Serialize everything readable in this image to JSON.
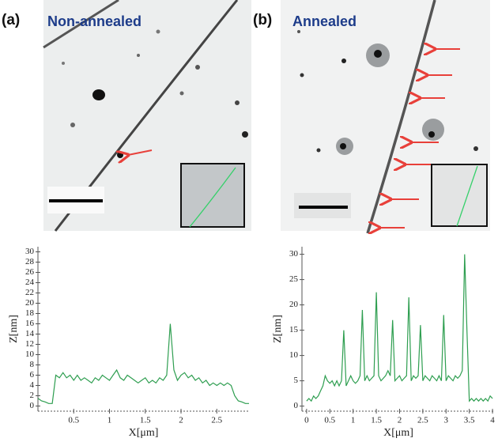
{
  "panels": [
    {
      "label": "(a)",
      "title": "Non-annealed"
    },
    {
      "label": "(b)",
      "title": "Annealed"
    }
  ],
  "chart_data": [
    {
      "type": "line",
      "xlabel": "X[μm]",
      "ylabel": "Z[nm]",
      "color": "#2e9e50",
      "xlim": [
        0,
        2.95
      ],
      "ylim": [
        -1,
        31
      ],
      "xticks": [
        0.5,
        1,
        1.5,
        2,
        2.5
      ],
      "yticks": [
        0,
        2,
        4,
        6,
        8,
        10,
        12,
        14,
        16,
        18,
        20,
        22,
        24,
        26,
        28,
        30
      ],
      "x": [
        0,
        0.05,
        0.1,
        0.15,
        0.2,
        0.25,
        0.3,
        0.35,
        0.4,
        0.45,
        0.5,
        0.55,
        0.6,
        0.65,
        0.7,
        0.75,
        0.8,
        0.85,
        0.9,
        0.95,
        1,
        1.05,
        1.1,
        1.15,
        1.2,
        1.25,
        1.3,
        1.35,
        1.4,
        1.45,
        1.5,
        1.55,
        1.6,
        1.65,
        1.7,
        1.75,
        1.8,
        1.85,
        1.9,
        1.95,
        2,
        2.05,
        2.1,
        2.15,
        2.2,
        2.25,
        2.3,
        2.35,
        2.4,
        2.45,
        2.5,
        2.55,
        2.6,
        2.65,
        2.7,
        2.75,
        2.8,
        2.85,
        2.9,
        2.95
      ],
      "values": [
        1.5,
        1,
        0.8,
        0.5,
        0.5,
        6,
        5.5,
        6.5,
        5.5,
        6,
        5,
        6,
        5,
        5.5,
        5,
        4.5,
        5.5,
        5,
        6,
        5.5,
        5,
        6,
        7,
        5.5,
        5,
        6,
        5.5,
        5,
        4.5,
        5,
        5.5,
        4.5,
        5,
        4.5,
        5.5,
        5,
        6,
        16,
        7,
        5,
        6,
        6.5,
        5.5,
        6,
        5,
        5.5,
        4.5,
        5,
        4,
        4.5,
        4,
        4.5,
        4,
        4.5,
        4,
        2,
        1,
        0.8,
        0.5,
        0.5
      ]
    },
    {
      "type": "line",
      "xlabel": "X[μm]",
      "ylabel": "Z[nm]",
      "color": "#2e9e50",
      "xlim": [
        -0.1,
        4.05
      ],
      "ylim": [
        -1,
        31.5
      ],
      "xticks": [
        0,
        0.5,
        1,
        1.5,
        2,
        2.5,
        3,
        3.5,
        4
      ],
      "yticks": [
        0,
        5,
        10,
        15,
        20,
        25,
        30
      ],
      "x": [
        0,
        0.05,
        0.1,
        0.15,
        0.2,
        0.25,
        0.3,
        0.35,
        0.4,
        0.45,
        0.5,
        0.55,
        0.6,
        0.65,
        0.7,
        0.75,
        0.8,
        0.85,
        0.9,
        0.95,
        1,
        1.05,
        1.1,
        1.15,
        1.2,
        1.25,
        1.3,
        1.35,
        1.4,
        1.45,
        1.5,
        1.55,
        1.6,
        1.65,
        1.7,
        1.75,
        1.8,
        1.85,
        1.9,
        1.95,
        2,
        2.05,
        2.1,
        2.15,
        2.2,
        2.25,
        2.3,
        2.35,
        2.4,
        2.45,
        2.5,
        2.55,
        2.6,
        2.65,
        2.7,
        2.75,
        2.8,
        2.85,
        2.9,
        2.95,
        3,
        3.05,
        3.1,
        3.15,
        3.2,
        3.25,
        3.3,
        3.35,
        3.4,
        3.45,
        3.5,
        3.55,
        3.6,
        3.65,
        3.7,
        3.75,
        3.8,
        3.85,
        3.9,
        3.95,
        4
      ],
      "values": [
        1,
        1.5,
        1,
        2,
        1.5,
        2,
        3,
        4,
        6,
        5,
        4.5,
        5,
        4,
        5,
        4,
        5,
        15,
        4,
        5,
        6,
        5,
        4.5,
        5,
        6,
        19,
        5,
        6,
        5,
        5.5,
        6,
        22.5,
        6,
        5,
        5.5,
        6,
        7,
        6,
        17,
        5,
        5.5,
        6,
        5,
        5.5,
        6,
        21.5,
        5,
        6,
        5.5,
        6,
        16,
        5,
        6,
        5.5,
        5,
        6,
        5.5,
        5,
        6,
        5,
        18,
        5,
        6,
        5.5,
        5,
        6,
        5.5,
        6,
        7,
        30,
        15,
        1,
        1.5,
        1,
        1.5,
        1,
        1.5,
        1,
        1.5,
        1,
        2,
        1.5
      ]
    }
  ]
}
